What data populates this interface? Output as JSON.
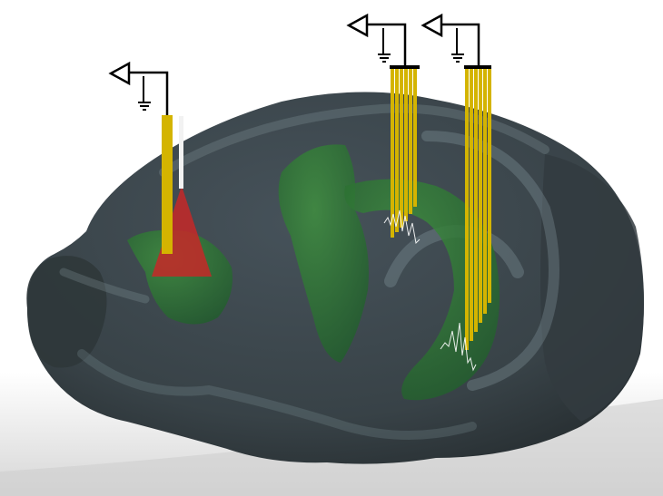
{
  "scene": {
    "subject": "brain-3d-render",
    "colors": {
      "background_top": "#ffffff",
      "background_bottom": "#d9d9d9",
      "brain": "#3a4346",
      "brain_dark": "#2a3134",
      "brain_highlight": "#8fa2a8",
      "region": "#2e7d32",
      "probe": "#d4b400",
      "injection": "#c62828",
      "symbol": "#000000",
      "trace": "#ffffff"
    },
    "probes": [
      {
        "id": "probe-1",
        "shanks": 1
      },
      {
        "id": "probe-2",
        "shanks": 6
      },
      {
        "id": "probe-3",
        "shanks": 6
      }
    ]
  }
}
